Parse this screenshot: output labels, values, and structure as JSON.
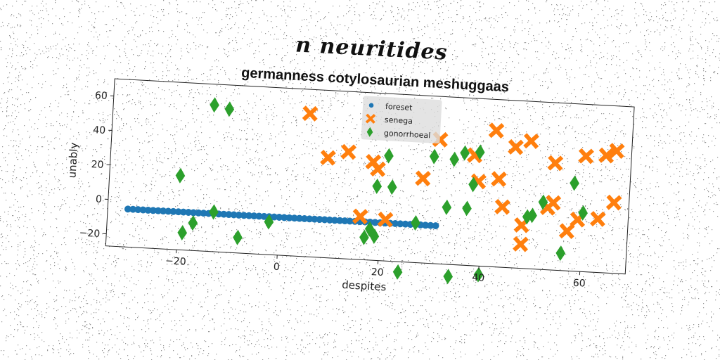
{
  "suptitle": "n neuritides",
  "chart_data": {
    "type": "scatter",
    "title": "germanness cotylosaurian meshuggaas",
    "xlabel": "despites",
    "ylabel": "unably",
    "xlim": [
      -34,
      69
    ],
    "ylim": [
      -27,
      70
    ],
    "xticks": [
      -20,
      0,
      20,
      40,
      60
    ],
    "yticks": [
      -20,
      0,
      20,
      40,
      60
    ],
    "legend_position": "top-center",
    "grid": false,
    "series": [
      {
        "name": "foreset",
        "marker": "circle",
        "color": "#1f77b4",
        "points": [
          [
            -30,
            -5
          ],
          [
            -29,
            -5
          ],
          [
            -28,
            -5
          ],
          [
            -27,
            -5
          ],
          [
            -26,
            -5
          ],
          [
            -25,
            -5
          ],
          [
            -24,
            -5
          ],
          [
            -23,
            -5
          ],
          [
            -22,
            -5
          ],
          [
            -21,
            -5
          ],
          [
            -20,
            -5
          ],
          [
            -19,
            -5
          ],
          [
            -18,
            -5
          ],
          [
            -17,
            -5
          ],
          [
            -16,
            -5
          ],
          [
            -15,
            -5
          ],
          [
            -14,
            -5
          ],
          [
            -13,
            -5
          ],
          [
            -12,
            -5
          ],
          [
            -11,
            -5
          ],
          [
            -10,
            -5
          ],
          [
            -9,
            -5
          ],
          [
            -8,
            -5
          ],
          [
            -7,
            -5
          ],
          [
            -6,
            -5
          ],
          [
            -5,
            -5
          ],
          [
            -4,
            -5
          ],
          [
            -3,
            -5
          ],
          [
            -2,
            -5
          ],
          [
            -1,
            -5
          ],
          [
            0,
            -5
          ],
          [
            1,
            -5
          ],
          [
            2,
            -5
          ],
          [
            3,
            -5
          ],
          [
            4,
            -5
          ],
          [
            5,
            -5
          ],
          [
            6,
            -5
          ],
          [
            7,
            -5
          ],
          [
            8,
            -5
          ],
          [
            9,
            -5
          ],
          [
            10,
            -5
          ],
          [
            11,
            -5
          ],
          [
            12,
            -5
          ],
          [
            13,
            -5
          ],
          [
            14,
            -5
          ],
          [
            15,
            -5
          ],
          [
            16,
            -5
          ],
          [
            17,
            -5
          ],
          [
            18,
            -5
          ],
          [
            19,
            -5
          ],
          [
            20,
            -5
          ],
          [
            21,
            -5
          ],
          [
            22,
            -5
          ],
          [
            23,
            -5
          ],
          [
            24,
            -5
          ],
          [
            25,
            -5
          ],
          [
            26,
            -5
          ],
          [
            27,
            -5
          ],
          [
            28,
            -5
          ],
          [
            29,
            -5
          ],
          [
            30,
            -5
          ],
          [
            31,
            -5
          ]
        ]
      },
      {
        "name": "senega",
        "marker": "x",
        "color": "#ff7f0e",
        "points": [
          [
            5,
            56
          ],
          [
            9,
            31
          ],
          [
            13,
            35
          ],
          [
            16,
            -2
          ],
          [
            18,
            30
          ],
          [
            19,
            26
          ],
          [
            21,
            -3
          ],
          [
            28,
            22
          ],
          [
            31,
            45
          ],
          [
            38,
            37
          ],
          [
            39,
            22
          ],
          [
            42,
            52
          ],
          [
            43,
            24
          ],
          [
            44,
            8
          ],
          [
            46,
            43
          ],
          [
            48,
            -2
          ],
          [
            48,
            -13
          ],
          [
            49,
            47
          ],
          [
            53,
            9
          ],
          [
            54,
            12
          ],
          [
            54,
            35
          ],
          [
            57,
            -4
          ],
          [
            59,
            3
          ],
          [
            60,
            40
          ],
          [
            63,
            4
          ],
          [
            64,
            41
          ],
          [
            66,
            44
          ],
          [
            66,
            14
          ]
        ]
      },
      {
        "name": "gonorrhoeal",
        "marker": "diamond",
        "color": "#2ca02c",
        "points": [
          [
            -20,
            16
          ],
          [
            -19,
            -17
          ],
          [
            -17,
            -11
          ],
          [
            -14,
            58
          ],
          [
            -13,
            -4
          ],
          [
            -11,
            56
          ],
          [
            -8,
            -18
          ],
          [
            -2,
            -8
          ],
          [
            17,
            -14
          ],
          [
            18,
            -9
          ],
          [
            19,
            -13
          ],
          [
            19,
            16
          ],
          [
            21,
            34
          ],
          [
            22,
            16
          ],
          [
            24,
            -33
          ],
          [
            27,
            -4
          ],
          [
            30,
            35
          ],
          [
            33,
            6
          ],
          [
            34,
            34
          ],
          [
            34,
            -34
          ],
          [
            36,
            38
          ],
          [
            37,
            6
          ],
          [
            38,
            20
          ],
          [
            39,
            39
          ],
          [
            40,
            -32
          ],
          [
            49,
            3
          ],
          [
            50,
            4
          ],
          [
            52,
            12
          ],
          [
            56,
            -17
          ],
          [
            58,
            24
          ],
          [
            60,
            7
          ]
        ]
      }
    ]
  }
}
